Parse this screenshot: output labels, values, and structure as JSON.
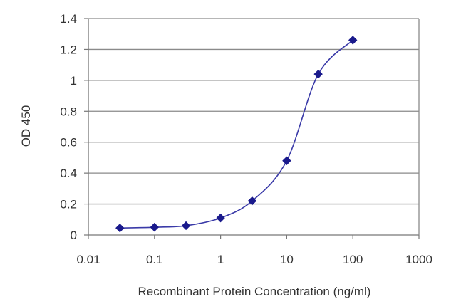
{
  "chart_data": {
    "type": "line",
    "title": "",
    "xlabel": "Recombinant Protein Concentration (ng/ml)",
    "ylabel": "OD 450",
    "x_scale": "log",
    "xlim": [
      0.01,
      1000
    ],
    "ylim": [
      0,
      1.4
    ],
    "x_ticks": [
      0.01,
      0.1,
      1,
      10,
      100,
      1000
    ],
    "x_tick_labels": [
      "0.01",
      "0.1",
      "1",
      "10",
      "100",
      "1000"
    ],
    "y_ticks": [
      0,
      0.2,
      0.4,
      0.6,
      0.8,
      1,
      1.2,
      1.4
    ],
    "y_tick_labels": [
      "0",
      "0.2",
      "0.4",
      "0.6",
      "0.8",
      "1",
      "1.2",
      "1.4"
    ],
    "grid": "horizontal",
    "legend": "none",
    "series": [
      {
        "x": [
          0.03,
          0.1,
          0.3,
          1,
          3,
          10,
          30,
          100
        ],
        "y": [
          0.045,
          0.05,
          0.06,
          0.11,
          0.22,
          0.48,
          1.04,
          1.26
        ],
        "marker": "diamond",
        "color": "#1a1a8c"
      }
    ]
  }
}
